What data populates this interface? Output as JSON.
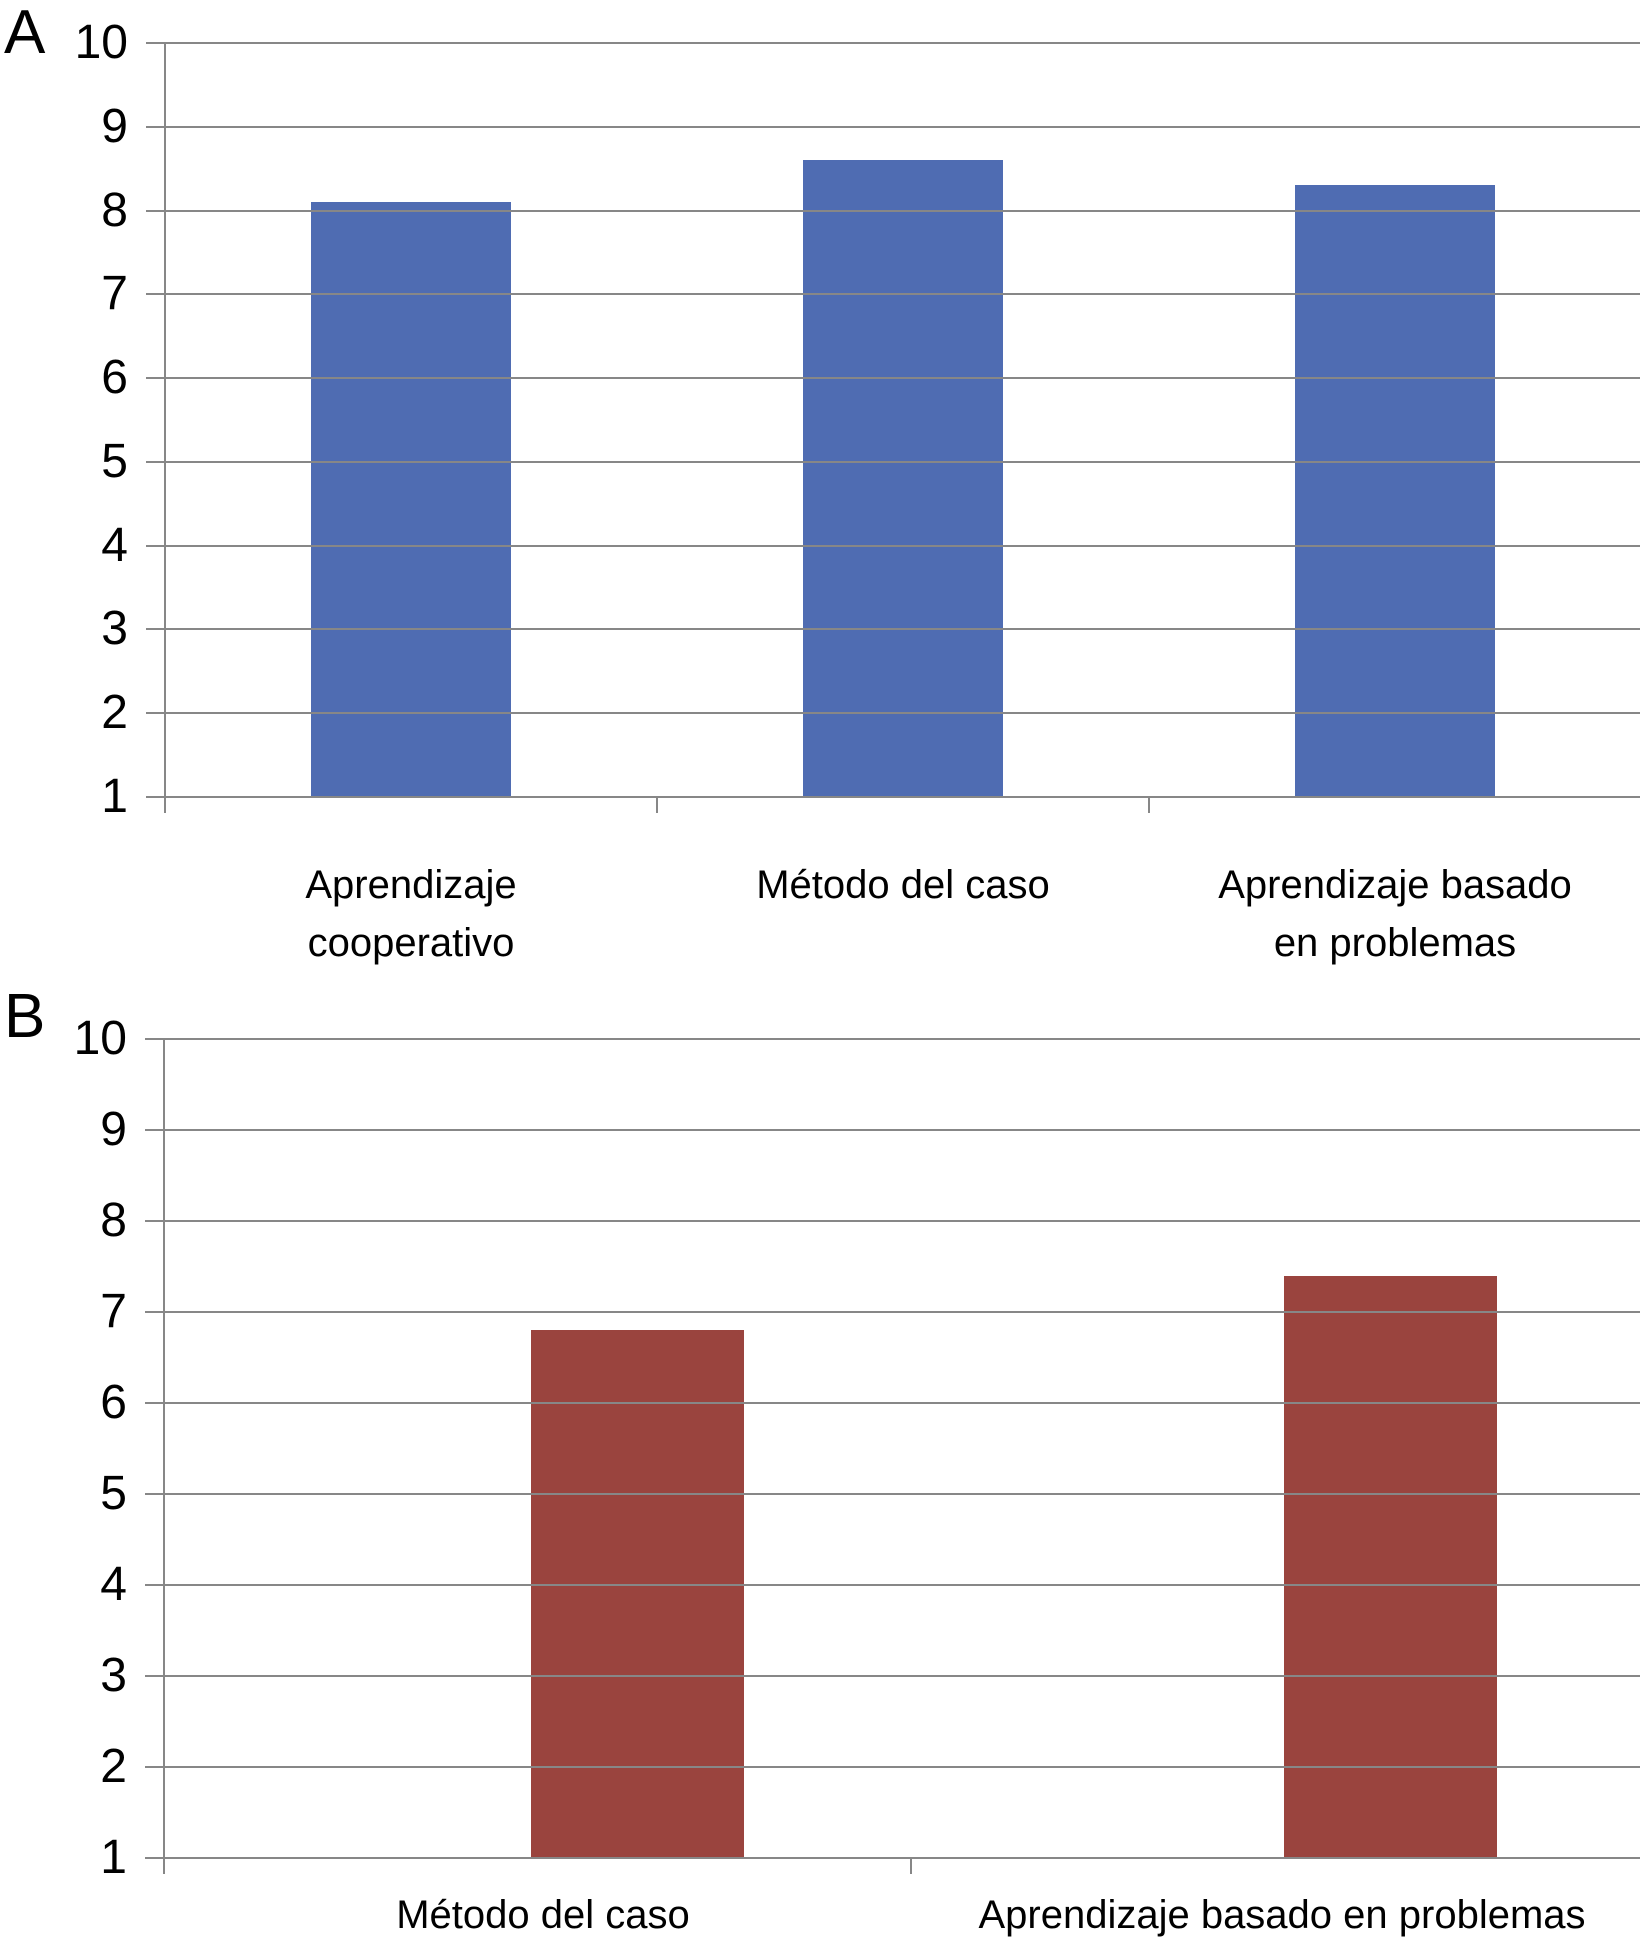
{
  "figure_title": "",
  "colors": {
    "panel_a_bar": "#4f6cb2",
    "panel_b_bar": "#9a443e",
    "gridline": "#878787",
    "axis": "#878787",
    "text": "#000000",
    "background": "#ffffff"
  },
  "chart_data": [
    {
      "type": "bar",
      "panel_label": "A",
      "categories": [
        "Aprendizaje\ncooperativo",
        "Método del caso",
        "Aprendizaje basado\nen problemas"
      ],
      "values": [
        8.1,
        8.6,
        8.3
      ],
      "bar_color": "#4f6cb2",
      "title": "",
      "xlabel": "",
      "ylabel": "",
      "ylim": [
        1,
        10
      ],
      "yticks": [
        1,
        2,
        3,
        4,
        5,
        6,
        7,
        8,
        9,
        10
      ],
      "grid": true,
      "gridlines_over_bars": true,
      "legend_position": "none"
    },
    {
      "type": "bar",
      "panel_label": "B",
      "categories": [
        "Método del caso",
        "Aprendizaje basado en problemas"
      ],
      "values": [
        6.8,
        7.4
      ],
      "bar_color": "#9a443e",
      "title": "",
      "xlabel": "",
      "ylabel": "",
      "ylim": [
        1,
        10
      ],
      "yticks": [
        1,
        2,
        3,
        4,
        5,
        6,
        7,
        8,
        9,
        10
      ],
      "grid": true,
      "gridlines_over_bars": true,
      "legend_position": "none"
    }
  ]
}
